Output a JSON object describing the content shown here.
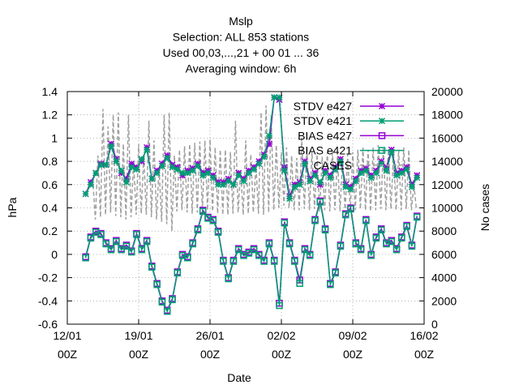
{
  "chart_data": {
    "type": "line",
    "title_lines": [
      "Mslp",
      "Selection: ALL    853 stations",
      "Used  00,03,...,21  + 00 01 ... 36",
      "Averaging window:  6h"
    ],
    "xlabel": "Date",
    "ylabel_left": "hPa",
    "ylabel_right": "No cases",
    "x_tick_labels": [
      {
        "date": "12/01",
        "hour": "00Z"
      },
      {
        "date": "19/01",
        "hour": "00Z"
      },
      {
        "date": "26/01",
        "hour": "00Z"
      },
      {
        "date": "02/02",
        "hour": "00Z"
      },
      {
        "date": "09/02",
        "hour": "00Z"
      },
      {
        "date": "16/02",
        "hour": "00Z"
      }
    ],
    "x_range_days": [
      0,
      35
    ],
    "ylim_left": [
      -0.6,
      1.4
    ],
    "y_ticks_left": [
      "-0.6",
      "-0.4",
      "-0.2",
      "0",
      "0.2",
      "0.4",
      "0.6",
      "0.8",
      "1",
      "1.2",
      "1.4"
    ],
    "ylim_right": [
      0,
      20000
    ],
    "y_ticks_right": [
      "0",
      "2000",
      "4000",
      "6000",
      "8000",
      "10000",
      "12000",
      "14000",
      "16000",
      "18000",
      "20000"
    ],
    "grid": true,
    "legend_placement": "top-right",
    "legend": [
      {
        "label": "STDV e427",
        "color": "#9400d3",
        "marker": "star"
      },
      {
        "label": "STDV e421",
        "color": "#009e73",
        "marker": "star"
      },
      {
        "label": "BIAS e427",
        "color": "#9400d3",
        "marker": "square"
      },
      {
        "label": "BIAS e421",
        "color": "#009e73",
        "marker": "square"
      },
      {
        "label": "CASES",
        "color": "#a0a0a0",
        "marker": "none"
      }
    ],
    "series": [
      {
        "name": "STDV e427",
        "axis": "left",
        "color": "#9400d3",
        "x": [
          1.8,
          2.3,
          2.8,
          3.3,
          3.8,
          4.3,
          4.8,
          5.3,
          5.8,
          6.3,
          6.8,
          7.3,
          7.8,
          8.3,
          8.8,
          9.3,
          9.8,
          10.3,
          10.8,
          11.3,
          11.8,
          12.3,
          12.8,
          13.3,
          13.8,
          14.3,
          14.8,
          15.3,
          15.8,
          16.3,
          16.8,
          17.3,
          17.8,
          18.3,
          18.8,
          19.3,
          19.8,
          20.3,
          20.8,
          21.3,
          21.8,
          22.3,
          22.8,
          23.3,
          23.8,
          24.3,
          24.8,
          25.3,
          25.8,
          26.3,
          26.8,
          27.3,
          27.8,
          28.3,
          28.8,
          29.3,
          29.8,
          30.3,
          30.8,
          31.3,
          31.8,
          32.3,
          32.8,
          33.3,
          33.8,
          34.3
        ],
        "y": [
          0.52,
          0.62,
          0.7,
          0.78,
          0.77,
          0.95,
          0.82,
          0.7,
          0.65,
          0.78,
          0.75,
          0.8,
          0.92,
          0.65,
          0.72,
          0.78,
          0.85,
          0.77,
          0.75,
          0.68,
          0.72,
          0.74,
          0.78,
          0.7,
          0.72,
          0.68,
          0.62,
          0.62,
          0.65,
          0.6,
          0.7,
          0.65,
          0.72,
          0.75,
          0.8,
          0.86,
          0.95,
          1.35,
          1.33,
          0.75,
          0.5,
          0.6,
          0.62,
          0.8,
          0.65,
          0.7,
          0.6,
          0.72,
          0.68,
          0.75,
          0.82,
          0.6,
          0.58,
          0.65,
          0.72,
          0.74,
          0.68,
          0.72,
          0.8,
          0.75,
          0.9,
          0.7,
          0.72,
          0.75,
          0.6,
          0.68
        ]
      },
      {
        "name": "STDV e421",
        "axis": "left",
        "color": "#009e73",
        "x": [
          1.8,
          2.3,
          2.8,
          3.3,
          3.8,
          4.3,
          4.8,
          5.3,
          5.8,
          6.3,
          6.8,
          7.3,
          7.8,
          8.3,
          8.8,
          9.3,
          9.8,
          10.3,
          10.8,
          11.3,
          11.8,
          12.3,
          12.8,
          13.3,
          13.8,
          14.3,
          14.8,
          15.3,
          15.8,
          16.3,
          16.8,
          17.3,
          17.8,
          18.3,
          18.8,
          19.3,
          19.8,
          20.3,
          20.8,
          21.3,
          21.8,
          22.3,
          22.8,
          23.3,
          23.8,
          24.3,
          24.8,
          25.3,
          25.8,
          26.3,
          26.8,
          27.3,
          27.8,
          28.3,
          28.8,
          29.3,
          29.8,
          30.3,
          30.8,
          31.3,
          31.8,
          32.3,
          32.8,
          33.3,
          33.8,
          34.3
        ],
        "y": [
          0.52,
          0.6,
          0.7,
          0.77,
          0.77,
          0.93,
          0.8,
          0.72,
          0.62,
          0.75,
          0.73,
          0.82,
          0.9,
          0.65,
          0.7,
          0.76,
          0.83,
          0.75,
          0.73,
          0.7,
          0.7,
          0.72,
          0.76,
          0.68,
          0.7,
          0.66,
          0.6,
          0.6,
          0.63,
          0.6,
          0.68,
          0.63,
          0.7,
          0.73,
          0.78,
          0.84,
          1.02,
          1.35,
          1.35,
          0.72,
          0.48,
          0.58,
          0.6,
          0.78,
          0.63,
          0.68,
          0.62,
          0.7,
          0.66,
          0.73,
          0.8,
          0.58,
          0.56,
          0.63,
          0.7,
          0.72,
          0.66,
          0.7,
          0.78,
          0.72,
          0.88,
          0.68,
          0.7,
          0.73,
          0.58,
          0.66
        ]
      },
      {
        "name": "BIAS e427",
        "axis": "left",
        "color": "#9400d3",
        "x": [
          1.8,
          2.3,
          2.8,
          3.3,
          3.8,
          4.3,
          4.8,
          5.3,
          5.8,
          6.3,
          6.8,
          7.3,
          7.8,
          8.3,
          8.8,
          9.3,
          9.8,
          10.3,
          10.8,
          11.3,
          11.8,
          12.3,
          12.8,
          13.3,
          13.8,
          14.3,
          14.8,
          15.3,
          15.8,
          16.3,
          16.8,
          17.3,
          17.8,
          18.3,
          18.8,
          19.3,
          19.8,
          20.3,
          20.8,
          21.3,
          21.8,
          22.3,
          22.8,
          23.3,
          23.8,
          24.3,
          24.8,
          25.3,
          25.8,
          26.3,
          26.8,
          27.3,
          27.8,
          28.3,
          28.8,
          29.3,
          29.8,
          30.3,
          30.8,
          31.3,
          31.8,
          32.3,
          32.8,
          33.3,
          33.8,
          34.3
        ],
        "y": [
          -0.02,
          0.15,
          0.2,
          0.18,
          0.1,
          0.05,
          0.12,
          0.05,
          0.08,
          0.03,
          0.18,
          0.05,
          0.12,
          -0.1,
          -0.25,
          -0.4,
          -0.48,
          -0.38,
          -0.15,
          0.0,
          -0.02,
          0.1,
          0.22,
          0.38,
          0.32,
          0.3,
          0.2,
          -0.05,
          -0.2,
          -0.05,
          0.05,
          0.0,
          0.02,
          0.05,
          0.0,
          -0.05,
          0.1,
          -0.05,
          -0.42,
          0.28,
          0.1,
          -0.05,
          -0.22,
          0.05,
          0.0,
          0.3,
          0.46,
          0.22,
          -0.25,
          -0.15,
          0.08,
          0.35,
          0.4,
          0.1,
          0.05,
          0.3,
          0.0,
          0.15,
          0.22,
          0.1,
          0.12,
          0.05,
          0.15,
          0.25,
          0.08,
          0.33
        ]
      },
      {
        "name": "BIAS e421",
        "axis": "left",
        "color": "#009e73",
        "x": [
          1.8,
          2.3,
          2.8,
          3.3,
          3.8,
          4.3,
          4.8,
          5.3,
          5.8,
          6.3,
          6.8,
          7.3,
          7.8,
          8.3,
          8.8,
          9.3,
          9.8,
          10.3,
          10.8,
          11.3,
          11.8,
          12.3,
          12.8,
          13.3,
          13.8,
          14.3,
          14.8,
          15.3,
          15.8,
          16.3,
          16.8,
          17.3,
          17.8,
          18.3,
          18.8,
          19.3,
          19.8,
          20.3,
          20.8,
          21.3,
          21.8,
          22.3,
          22.8,
          23.3,
          23.8,
          24.3,
          24.8,
          25.3,
          25.8,
          26.3,
          26.8,
          27.3,
          27.8,
          28.3,
          28.8,
          29.3,
          29.8,
          30.3,
          30.8,
          31.3,
          31.8,
          32.3,
          32.8,
          33.3,
          33.8,
          34.3
        ],
        "y": [
          -0.03,
          0.14,
          0.19,
          0.17,
          0.09,
          0.04,
          0.11,
          0.04,
          0.07,
          0.02,
          0.17,
          0.04,
          0.11,
          -0.11,
          -0.26,
          -0.41,
          -0.49,
          -0.39,
          -0.16,
          -0.01,
          -0.03,
          0.09,
          0.21,
          0.37,
          0.31,
          0.29,
          0.19,
          -0.06,
          -0.21,
          -0.06,
          0.04,
          -0.01,
          0.01,
          0.04,
          -0.01,
          -0.06,
          0.09,
          -0.06,
          -0.44,
          0.27,
          0.09,
          -0.06,
          -0.25,
          0.04,
          -0.01,
          0.29,
          0.45,
          0.21,
          -0.26,
          -0.16,
          0.07,
          0.34,
          0.39,
          0.09,
          0.04,
          0.29,
          -0.01,
          0.14,
          0.21,
          0.09,
          0.11,
          0.04,
          0.14,
          0.24,
          0.07,
          0.32
        ]
      },
      {
        "name": "CASES",
        "axis": "right",
        "color": "#a0a0a0",
        "x": [
          2.5,
          3.0,
          3.5,
          4.0,
          4.5,
          5.0,
          5.5,
          6.0,
          6.5,
          7.0,
          7.5,
          8.0,
          8.5,
          9.0,
          9.5,
          10.0,
          10.5,
          11.0,
          11.5,
          12.0,
          12.5,
          13.0,
          13.5,
          14.0,
          14.5,
          15.0,
          15.5,
          16.0,
          16.5,
          17.0,
          17.5,
          18.0,
          18.5,
          19.0,
          19.5,
          20.0,
          20.5,
          21.0,
          21.5,
          22.0,
          22.5,
          23.0,
          23.5,
          24.0,
          24.5,
          25.0,
          25.5,
          26.0,
          26.5,
          27.0,
          27.5,
          28.0,
          28.5,
          29.0,
          29.5,
          30.0,
          30.5,
          31.0,
          31.5,
          32.0,
          32.5,
          33.0,
          33.5,
          34.0
        ],
        "y_high": [
          12500,
          14500,
          18500,
          17000,
          18000,
          18200,
          15500,
          18000,
          14000,
          15500,
          14500,
          17500,
          15800,
          13500,
          18000,
          18200,
          14500,
          15000,
          15300,
          15500,
          15600,
          15700,
          15800,
          15900,
          15200,
          15000,
          15000,
          14800,
          17500,
          13200,
          15800,
          14600,
          13800,
          18200,
          18800,
          18000,
          15400,
          14800,
          15200,
          14500,
          14300,
          16000,
          15200,
          14800,
          14600,
          14400,
          14800,
          15000,
          14400,
          14200,
          14600,
          14800,
          15000,
          15200,
          15000,
          15200,
          15400,
          15200,
          15000,
          14800,
          15000,
          15200,
          15000,
          12000
        ],
        "y_low": [
          9000,
          9200,
          9400,
          9600,
          9300,
          9200,
          9000,
          9200,
          9400,
          9500,
          9400,
          9200,
          9000,
          8800,
          8600,
          8000,
          9700,
          9800,
          9600,
          9500,
          9600,
          9700,
          9800,
          9700,
          9500,
          9400,
          9400,
          9500,
          9600,
          9400,
          9500,
          9600,
          9500,
          9400,
          9600,
          9800,
          10000,
          10200,
          10000,
          9800,
          9800,
          9900,
          9800,
          9900,
          9700,
          9800,
          9700,
          9800,
          9700,
          9600,
          9700,
          9800,
          9900,
          9800,
          9700,
          9800,
          9900,
          9800,
          9900,
          9800,
          9800,
          9900,
          9800,
          9800
        ]
      }
    ]
  }
}
